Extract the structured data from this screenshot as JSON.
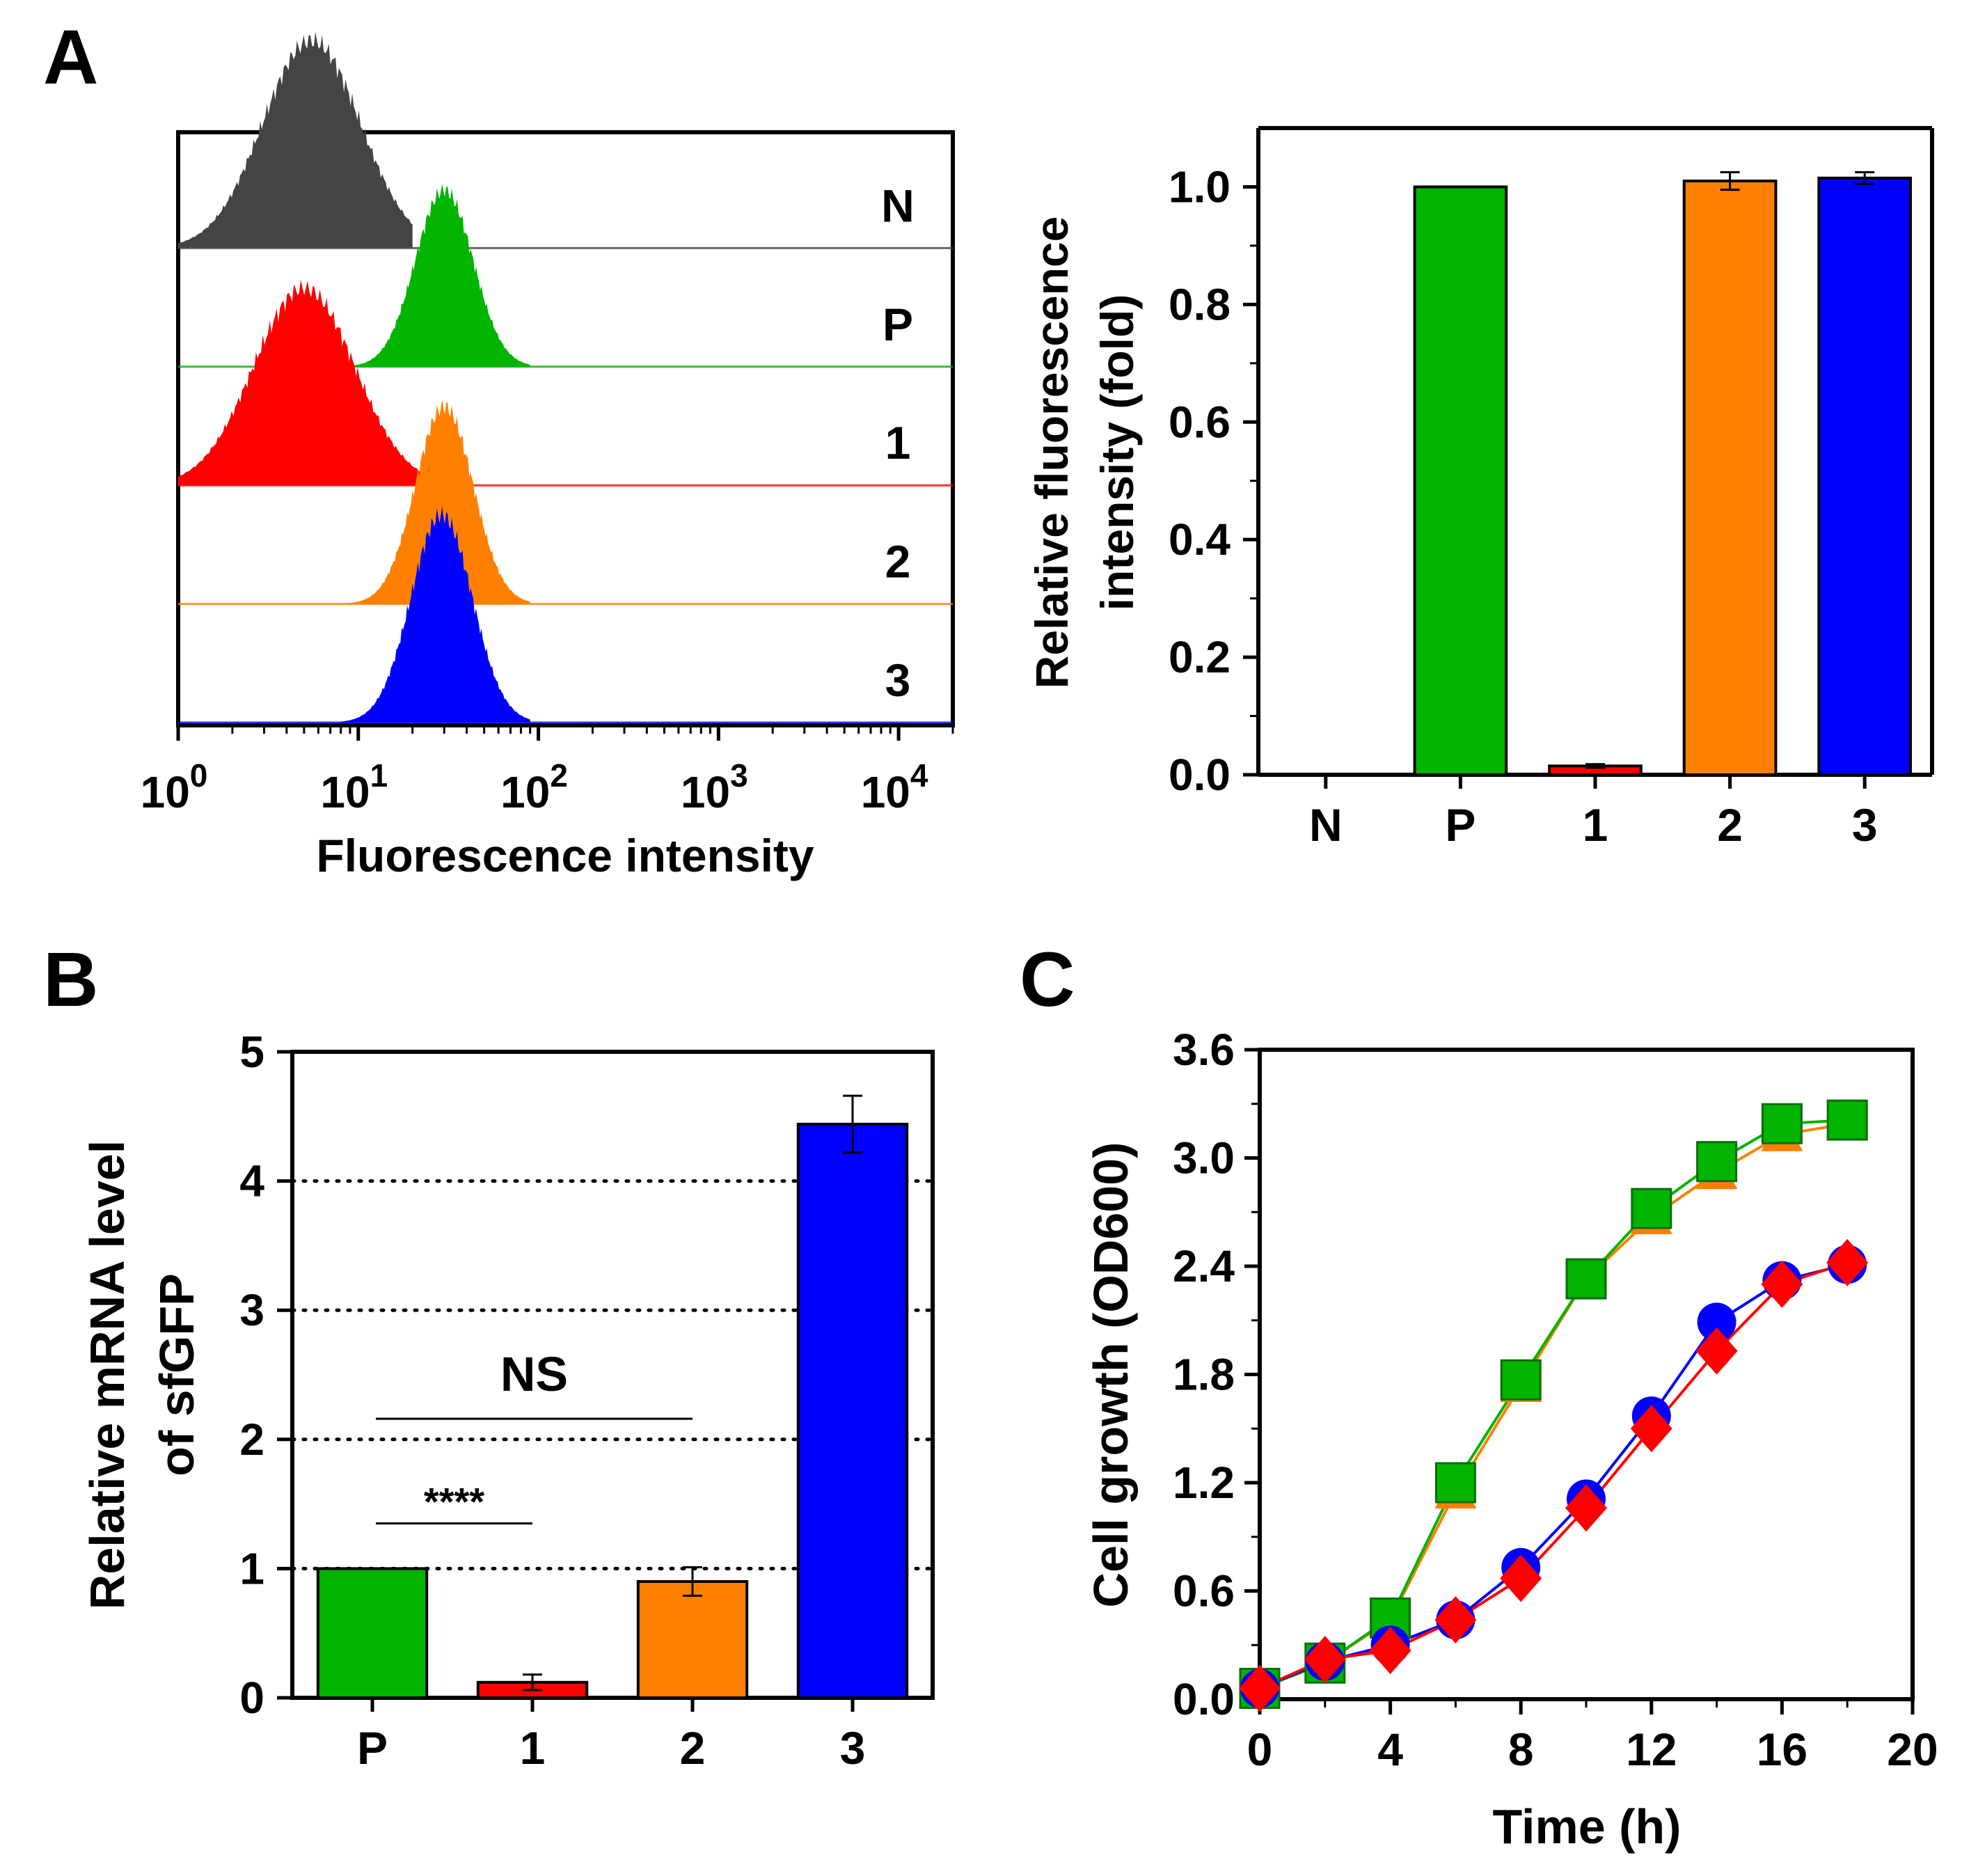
{
  "panels": {
    "a": {
      "letter": "A"
    },
    "b": {
      "letter": "B"
    },
    "c": {
      "letter": "C"
    }
  },
  "colors": {
    "N": "#444444",
    "P": "#00b400",
    "1": "#ff0000",
    "2": "#ff8000",
    "3": "#0000ff",
    "black": "#000000"
  },
  "chart_data": [
    {
      "id": "flow-histogram",
      "type": "area",
      "xlabel": "Fluorescence intensity",
      "x_scale": "log",
      "xlim": [
        1,
        20000
      ],
      "x_ticks": [
        {
          "base": "10",
          "exp": "0",
          "value": 1
        },
        {
          "base": "10",
          "exp": "1",
          "value": 10
        },
        {
          "base": "10",
          "exp": "2",
          "value": 100
        },
        {
          "base": "10",
          "exp": "3",
          "value": 1000
        },
        {
          "base": "10",
          "exp": "4",
          "value": 10000
        }
      ],
      "series": [
        {
          "name": "N",
          "color": "#444444",
          "peak": 5.5,
          "sigma": 0.27,
          "rel_height": 1.0,
          "start": 1.0,
          "end": 20
        },
        {
          "name": "P",
          "color": "#00b400",
          "peak": 30,
          "sigma": 0.16,
          "rel_height": 0.85,
          "start": 8,
          "end": 90
        },
        {
          "name": "1",
          "color": "#ff0000",
          "peak": 5.0,
          "sigma": 0.28,
          "rel_height": 0.95,
          "start": 1.0,
          "end": 22
        },
        {
          "name": "2",
          "color": "#ff8000",
          "peak": 30,
          "sigma": 0.16,
          "rel_height": 0.95,
          "start": 8,
          "end": 90
        },
        {
          "name": "3",
          "color": "#0000ff",
          "peak": 29,
          "sigma": 0.17,
          "rel_height": 1.0,
          "start": 8,
          "end": 90
        }
      ]
    },
    {
      "id": "relative-fluorescence",
      "type": "bar",
      "title": "",
      "ylabel_line1": "Relative fluorescence",
      "ylabel_line2": "intensity (fold)",
      "categories": [
        "N",
        "P",
        "1",
        "2",
        "3"
      ],
      "values": [
        0.0,
        1.0,
        0.015,
        1.01,
        1.015
      ],
      "errors": [
        0,
        0,
        0.003,
        0.015,
        0.01
      ],
      "colors": [
        "#444444",
        "#00b400",
        "#ff0000",
        "#ff8000",
        "#0000ff"
      ],
      "ylim": [
        0,
        1.1
      ],
      "y_ticks": [
        "0.0",
        "0.2",
        "0.4",
        "0.6",
        "0.8",
        "1.0"
      ]
    },
    {
      "id": "relative-mrna",
      "type": "bar",
      "ylabel_line1": "Relative mRNA level",
      "ylabel_line2": "of sfGFP",
      "categories": [
        "P",
        "1",
        "2",
        "3"
      ],
      "values": [
        1.0,
        0.12,
        0.9,
        4.44
      ],
      "errors": [
        0,
        0.06,
        0.11,
        0.22
      ],
      "colors": [
        "#00b400",
        "#ff0000",
        "#ff8000",
        "#0000ff"
      ],
      "ylim": [
        0,
        5
      ],
      "y_ticks": [
        "0",
        "1",
        "2",
        "3",
        "4",
        "5"
      ],
      "gridlines": [
        1,
        2,
        3,
        4
      ],
      "annotations": [
        {
          "text": "****",
          "from": "P",
          "to": "1"
        },
        {
          "text": "NS",
          "from": "P",
          "to": "2"
        }
      ]
    },
    {
      "id": "cell-growth",
      "type": "line",
      "xlabel": "Time (h)",
      "ylabel": "Cell growth (OD600)",
      "xlim": [
        0,
        20
      ],
      "ylim": [
        0,
        3.6
      ],
      "x_ticks": [
        "0",
        "4",
        "8",
        "12",
        "16",
        "20"
      ],
      "y_ticks": [
        "0.0",
        "0.6",
        "1.2",
        "1.8",
        "2.4",
        "3.0",
        "3.6"
      ],
      "x": [
        0,
        2,
        4,
        6,
        8,
        10,
        12,
        14,
        16,
        18
      ],
      "series": [
        {
          "name": "orange-triangle",
          "marker": "triangle",
          "color": "#ff8000",
          "values": [
            0.06,
            0.2,
            0.44,
            1.15,
            1.74,
            2.33,
            2.67,
            2.92,
            3.13,
            3.19
          ]
        },
        {
          "name": "green-square",
          "marker": "square",
          "color": "#00b400",
          "values": [
            0.06,
            0.2,
            0.45,
            1.2,
            1.77,
            2.33,
            2.72,
            2.98,
            3.19,
            3.21
          ]
        },
        {
          "name": "blue-circle",
          "marker": "circle",
          "color": "#0000ff",
          "values": [
            0.06,
            0.21,
            0.3,
            0.44,
            0.73,
            1.11,
            1.57,
            2.09,
            2.32,
            2.41
          ]
        },
        {
          "name": "red-diamond",
          "marker": "diamond",
          "color": "#ff0000",
          "values": [
            0.06,
            0.22,
            0.27,
            0.44,
            0.67,
            1.06,
            1.5,
            1.93,
            2.3,
            2.42
          ]
        }
      ]
    }
  ]
}
